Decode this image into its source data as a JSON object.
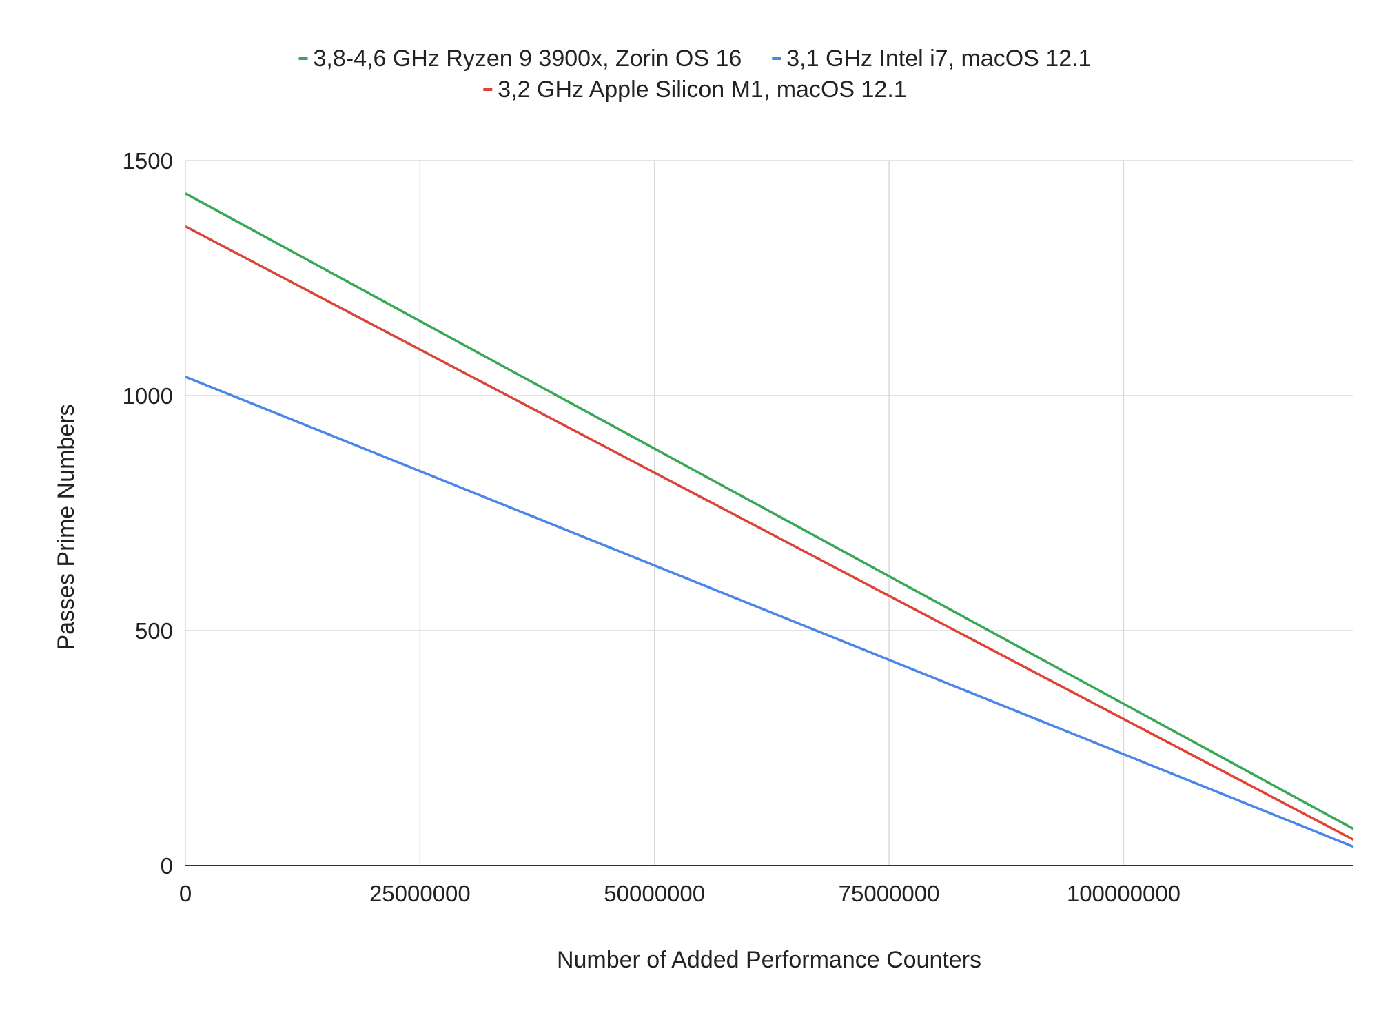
{
  "chart_data": {
    "type": "line",
    "title": "",
    "xlabel": "Number of Added Performance Counters",
    "ylabel": "Passes Prime Numbers",
    "xlim": [
      0,
      124500000
    ],
    "ylim": [
      0,
      1500
    ],
    "x_ticks": [
      0,
      25000000,
      50000000,
      75000000,
      100000000
    ],
    "x_tick_labels": [
      "0",
      "25000000",
      "50000000",
      "75000000",
      "100000000"
    ],
    "y_ticks": [
      0,
      500,
      1000,
      1500
    ],
    "y_tick_labels": [
      "0",
      "500",
      "1000",
      "1500"
    ],
    "grid": true,
    "legend_position": "top",
    "series": [
      {
        "name": "3,8-4,6 GHz Ryzen 9 3900x, Zorin OS 16",
        "color": "#3aa757",
        "x": [
          0,
          124500000
        ],
        "y": [
          1430,
          78
        ]
      },
      {
        "name": "3,1 GHz Intel i7, macOS 12.1",
        "color": "#4a86e8",
        "x": [
          0,
          124500000
        ],
        "y": [
          1040,
          40
        ]
      },
      {
        "name": "3,2 GHz Apple Silicon M1, macOS 12.1",
        "color": "#db4437",
        "x": [
          0,
          124500000
        ],
        "y": [
          1360,
          55
        ]
      }
    ]
  }
}
